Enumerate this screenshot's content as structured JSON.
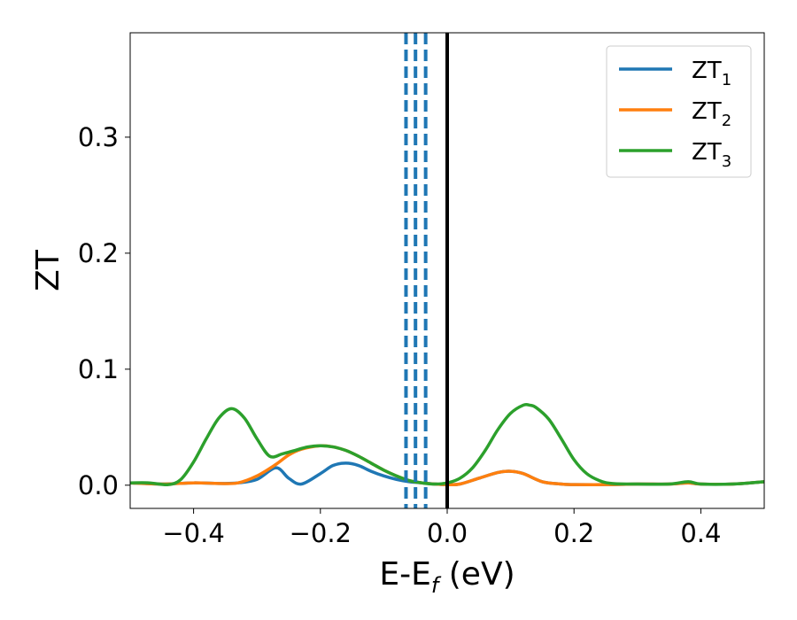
{
  "chart_data": {
    "type": "line",
    "xlabel": {
      "main": "E-E",
      "sub": "f",
      "suffix": " (eV)"
    },
    "ylabel": "ZT",
    "xlim": [
      -0.5,
      0.5
    ],
    "ylim": [
      -0.02,
      0.39
    ],
    "xticks": [
      {
        "value": -0.4,
        "label": "−0.4"
      },
      {
        "value": -0.2,
        "label": "−0.2"
      },
      {
        "value": 0.0,
        "label": "0.0"
      },
      {
        "value": 0.2,
        "label": "0.2"
      },
      {
        "value": 0.4,
        "label": "0.4"
      }
    ],
    "yticks": [
      {
        "value": 0.0,
        "label": "0.0"
      },
      {
        "value": 0.1,
        "label": "0.1"
      },
      {
        "value": 0.2,
        "label": "0.2"
      },
      {
        "value": 0.3,
        "label": "0.3"
      }
    ],
    "grid": false,
    "legend_position": "top-right",
    "series": [
      {
        "name": "ZT",
        "sub": "1",
        "color": "#1f77b4",
        "x": [
          -0.5,
          -0.45,
          -0.4,
          -0.36,
          -0.33,
          -0.3,
          -0.27,
          -0.25,
          -0.23,
          -0.2,
          -0.18,
          -0.16,
          -0.14,
          -0.12,
          -0.1,
          -0.08,
          -0.06,
          -0.04,
          -0.02,
          0.0,
          0.02,
          0.05,
          0.08,
          0.1,
          0.12,
          0.15,
          0.18,
          0.2,
          0.25,
          0.3,
          0.35,
          0.38,
          0.4,
          0.45,
          0.5
        ],
        "y": [
          0.002,
          0.001,
          0.002,
          0.0015,
          0.002,
          0.005,
          0.015,
          0.006,
          0.001,
          0.01,
          0.017,
          0.019,
          0.017,
          0.012,
          0.008,
          0.005,
          0.003,
          0.002,
          0.001,
          0.0005,
          0.001,
          0.006,
          0.011,
          0.012,
          0.01,
          0.003,
          0.001,
          0.0005,
          0.0005,
          0.001,
          0.001,
          0.002,
          0.001,
          0.001,
          0.003
        ]
      },
      {
        "name": "ZT",
        "sub": "2",
        "color": "#ff7f0e",
        "x": [
          -0.5,
          -0.45,
          -0.4,
          -0.36,
          -0.33,
          -0.3,
          -0.27,
          -0.25,
          -0.23,
          -0.2,
          -0.18,
          -0.16,
          -0.14,
          -0.12,
          -0.1,
          -0.08,
          -0.06,
          -0.04,
          -0.02,
          0.0,
          0.02,
          0.05,
          0.08,
          0.1,
          0.12,
          0.15,
          0.18,
          0.2,
          0.25,
          0.3,
          0.35,
          0.38,
          0.4,
          0.45,
          0.5
        ],
        "y": [
          0.002,
          0.001,
          0.002,
          0.0015,
          0.002,
          0.008,
          0.018,
          0.026,
          0.031,
          0.034,
          0.033,
          0.03,
          0.025,
          0.019,
          0.013,
          0.008,
          0.004,
          0.002,
          0.001,
          0.0005,
          0.001,
          0.006,
          0.011,
          0.012,
          0.01,
          0.003,
          0.001,
          0.0005,
          0.0005,
          0.001,
          0.001,
          0.002,
          0.001,
          0.001,
          0.003
        ]
      },
      {
        "name": "ZT",
        "sub": "3",
        "color": "#2ca02c",
        "x": [
          -0.5,
          -0.47,
          -0.44,
          -0.42,
          -0.4,
          -0.38,
          -0.36,
          -0.34,
          -0.32,
          -0.3,
          -0.28,
          -0.26,
          -0.24,
          -0.22,
          -0.2,
          -0.18,
          -0.16,
          -0.14,
          -0.12,
          -0.1,
          -0.08,
          -0.06,
          -0.04,
          -0.02,
          0.0,
          0.02,
          0.04,
          0.06,
          0.08,
          0.1,
          0.12,
          0.13,
          0.14,
          0.16,
          0.18,
          0.2,
          0.22,
          0.24,
          0.26,
          0.3,
          0.35,
          0.38,
          0.4,
          0.45,
          0.5
        ],
        "y": [
          0.002,
          0.002,
          0.0005,
          0.005,
          0.02,
          0.04,
          0.058,
          0.066,
          0.058,
          0.04,
          0.025,
          0.027,
          0.03,
          0.033,
          0.034,
          0.033,
          0.03,
          0.025,
          0.019,
          0.013,
          0.008,
          0.004,
          0.002,
          0.001,
          0.002,
          0.006,
          0.015,
          0.03,
          0.048,
          0.062,
          0.069,
          0.069,
          0.067,
          0.057,
          0.04,
          0.022,
          0.01,
          0.004,
          0.0015,
          0.001,
          0.001,
          0.003,
          0.001,
          0.001,
          0.003
        ]
      }
    ],
    "vlines": [
      {
        "x": -0.065,
        "color": "#1f77b4",
        "style": "dashed"
      },
      {
        "x": -0.05,
        "color": "#1f77b4",
        "style": "dashed"
      },
      {
        "x": -0.034,
        "color": "#1f77b4",
        "style": "dashed"
      },
      {
        "x": 0.0,
        "color": "#000000",
        "style": "solid"
      }
    ]
  }
}
